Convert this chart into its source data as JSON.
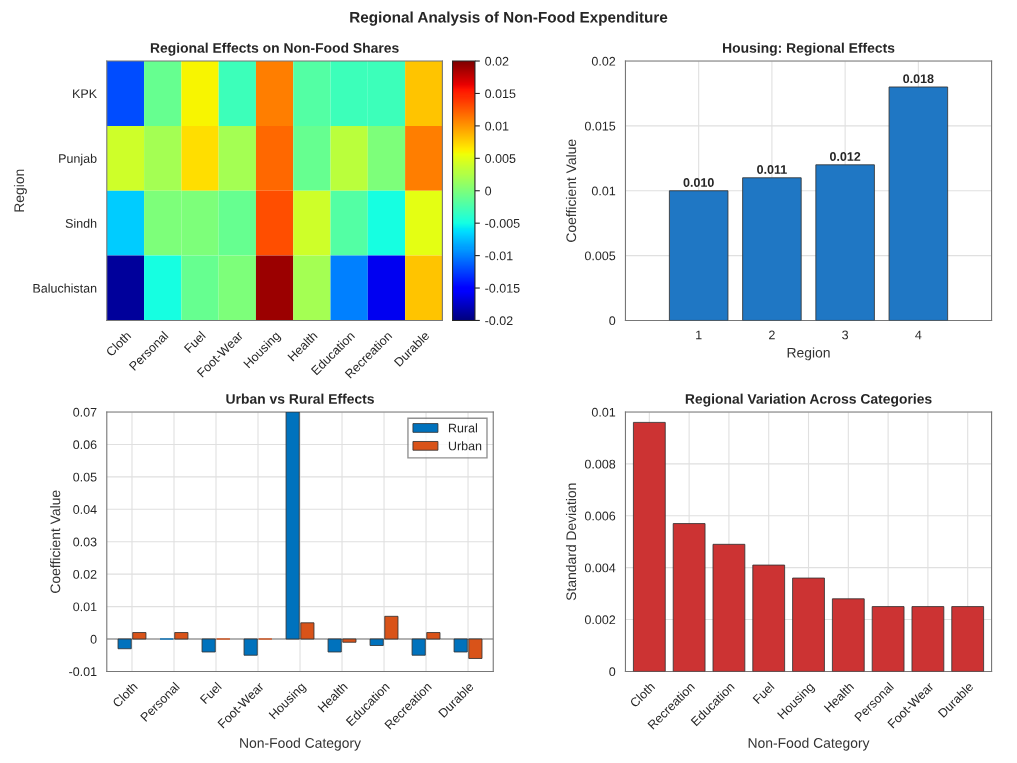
{
  "chart_data": [
    {
      "type": "heatmap",
      "title": "Regional Effects on Non-Food Shares",
      "ylabel": "Region",
      "annotations": [
        "Regional Analysis of Non-Food Expenditure"
      ],
      "categories": [
        "Cloth",
        "Personal",
        "Fuel",
        "Foot-Wear",
        "Housing",
        "Health",
        "Education",
        "Recreation",
        "Durable"
      ],
      "y_categories": [
        "KPK",
        "Punjab",
        "Sindh",
        "Baluchistan"
      ],
      "cells": [
        [
          -0.012,
          -0.001,
          0.006,
          -0.003,
          0.011,
          -0.002,
          -0.003,
          -0.003,
          0.008
        ],
        [
          0.004,
          0.002,
          0.007,
          0.002,
          0.012,
          -0.001,
          0.003,
          0.0,
          0.011
        ],
        [
          -0.007,
          0.0,
          0.0,
          -0.001,
          0.013,
          0.004,
          -0.002,
          -0.005,
          0.005
        ],
        [
          -0.019,
          -0.005,
          -0.001,
          0.0,
          0.019,
          0.002,
          -0.01,
          -0.016,
          0.008
        ]
      ],
      "clim": [
        -0.02,
        0.02
      ],
      "cticks": [
        -0.02,
        -0.015,
        -0.01,
        -0.005,
        0,
        0.005,
        0.01,
        0.015,
        0.02
      ],
      "grid": false
    },
    {
      "type": "bar",
      "title": "Housing: Regional Effects",
      "xlabel": "Region",
      "ylabel": "Coefficient Value",
      "x": [
        1,
        2,
        3,
        4
      ],
      "values": [
        0.01,
        0.011,
        0.012,
        0.018
      ],
      "color": "#1f77c4",
      "value_labels": [
        "0.010",
        "0.011",
        "0.012",
        "0.018"
      ],
      "xlim": [
        0,
        5
      ],
      "xticks": [
        1,
        2,
        3,
        4
      ],
      "ylim": [
        0,
        0.02
      ],
      "yticks": [
        0,
        0.005,
        0.01,
        0.015,
        0.02
      ],
      "grid": true
    },
    {
      "type": "bar",
      "title": "Urban vs Rural Effects",
      "xlabel": "Non-Food Category",
      "ylabel": "Coefficient Value",
      "categories": [
        "Cloth",
        "Personal",
        "Fuel",
        "Foot-Wear",
        "Housing",
        "Health",
        "Education",
        "Recreation",
        "Durable"
      ],
      "series": [
        {
          "name": "Rural",
          "color": "#0072bd",
          "values": [
            -0.003,
            0,
            -0.004,
            -0.005,
            0.07,
            -0.004,
            -0.002,
            -0.005,
            -0.004
          ]
        },
        {
          "name": "Urban",
          "color": "#d95319",
          "values": [
            0.002,
            0.002,
            0,
            0,
            0.005,
            -0.001,
            0.007,
            0.002,
            -0.006
          ]
        }
      ],
      "ylim": [
        -0.01,
        0.07
      ],
      "yticks": [
        -0.01,
        0,
        0.01,
        0.02,
        0.03,
        0.04,
        0.05,
        0.06,
        0.07
      ],
      "grid": true,
      "legend": "top right"
    },
    {
      "type": "bar",
      "title": "Regional Variation Across Categories",
      "xlabel": "Non-Food Category",
      "ylabel": "Standard Deviation",
      "categories": [
        "Cloth",
        "Recreation",
        "Education",
        "Fuel",
        "Housing",
        "Health",
        "Personal",
        "Foot-Wear",
        "Durable"
      ],
      "values": [
        0.0096,
        0.0057,
        0.0049,
        0.0041,
        0.0036,
        0.0028,
        0.0025,
        0.0025,
        0.0025
      ],
      "color": "#cc3333",
      "ylim": [
        0,
        0.01
      ],
      "yticks": [
        0,
        0.002,
        0.004,
        0.006,
        0.008,
        0.01
      ],
      "grid": true
    }
  ]
}
